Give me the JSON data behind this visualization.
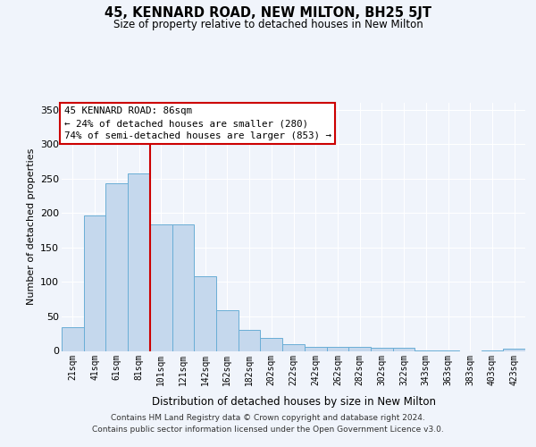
{
  "title": "45, KENNARD ROAD, NEW MILTON, BH25 5JT",
  "subtitle": "Size of property relative to detached houses in New Milton",
  "xlabel": "Distribution of detached houses by size in New Milton",
  "ylabel": "Number of detached properties",
  "categories": [
    "21sqm",
    "41sqm",
    "61sqm",
    "81sqm",
    "101sqm",
    "121sqm",
    "142sqm",
    "162sqm",
    "182sqm",
    "202sqm",
    "222sqm",
    "242sqm",
    "262sqm",
    "282sqm",
    "302sqm",
    "322sqm",
    "343sqm",
    "363sqm",
    "383sqm",
    "403sqm",
    "423sqm"
  ],
  "values": [
    35,
    197,
    243,
    257,
    184,
    184,
    108,
    59,
    30,
    19,
    10,
    6,
    6,
    6,
    5,
    4,
    1,
    1,
    0,
    1,
    3
  ],
  "bar_color": "#c5d8ed",
  "bar_edge_color": "#6aaed6",
  "fig_background": "#f0f4fb",
  "grid_color": "#ffffff",
  "vline_x": 3.5,
  "vline_color": "#cc0000",
  "annotation_line1": "45 KENNARD ROAD: 86sqm",
  "annotation_line2": "← 24% of detached houses are smaller (280)",
  "annotation_line3": "74% of semi-detached houses are larger (853) →",
  "annotation_box_color": "#ffffff",
  "annotation_box_edge": "#cc0000",
  "ylim": [
    0,
    360
  ],
  "yticks": [
    0,
    50,
    100,
    150,
    200,
    250,
    300,
    350
  ],
  "footer_line1": "Contains HM Land Registry data © Crown copyright and database right 2024.",
  "footer_line2": "Contains public sector information licensed under the Open Government Licence v3.0."
}
